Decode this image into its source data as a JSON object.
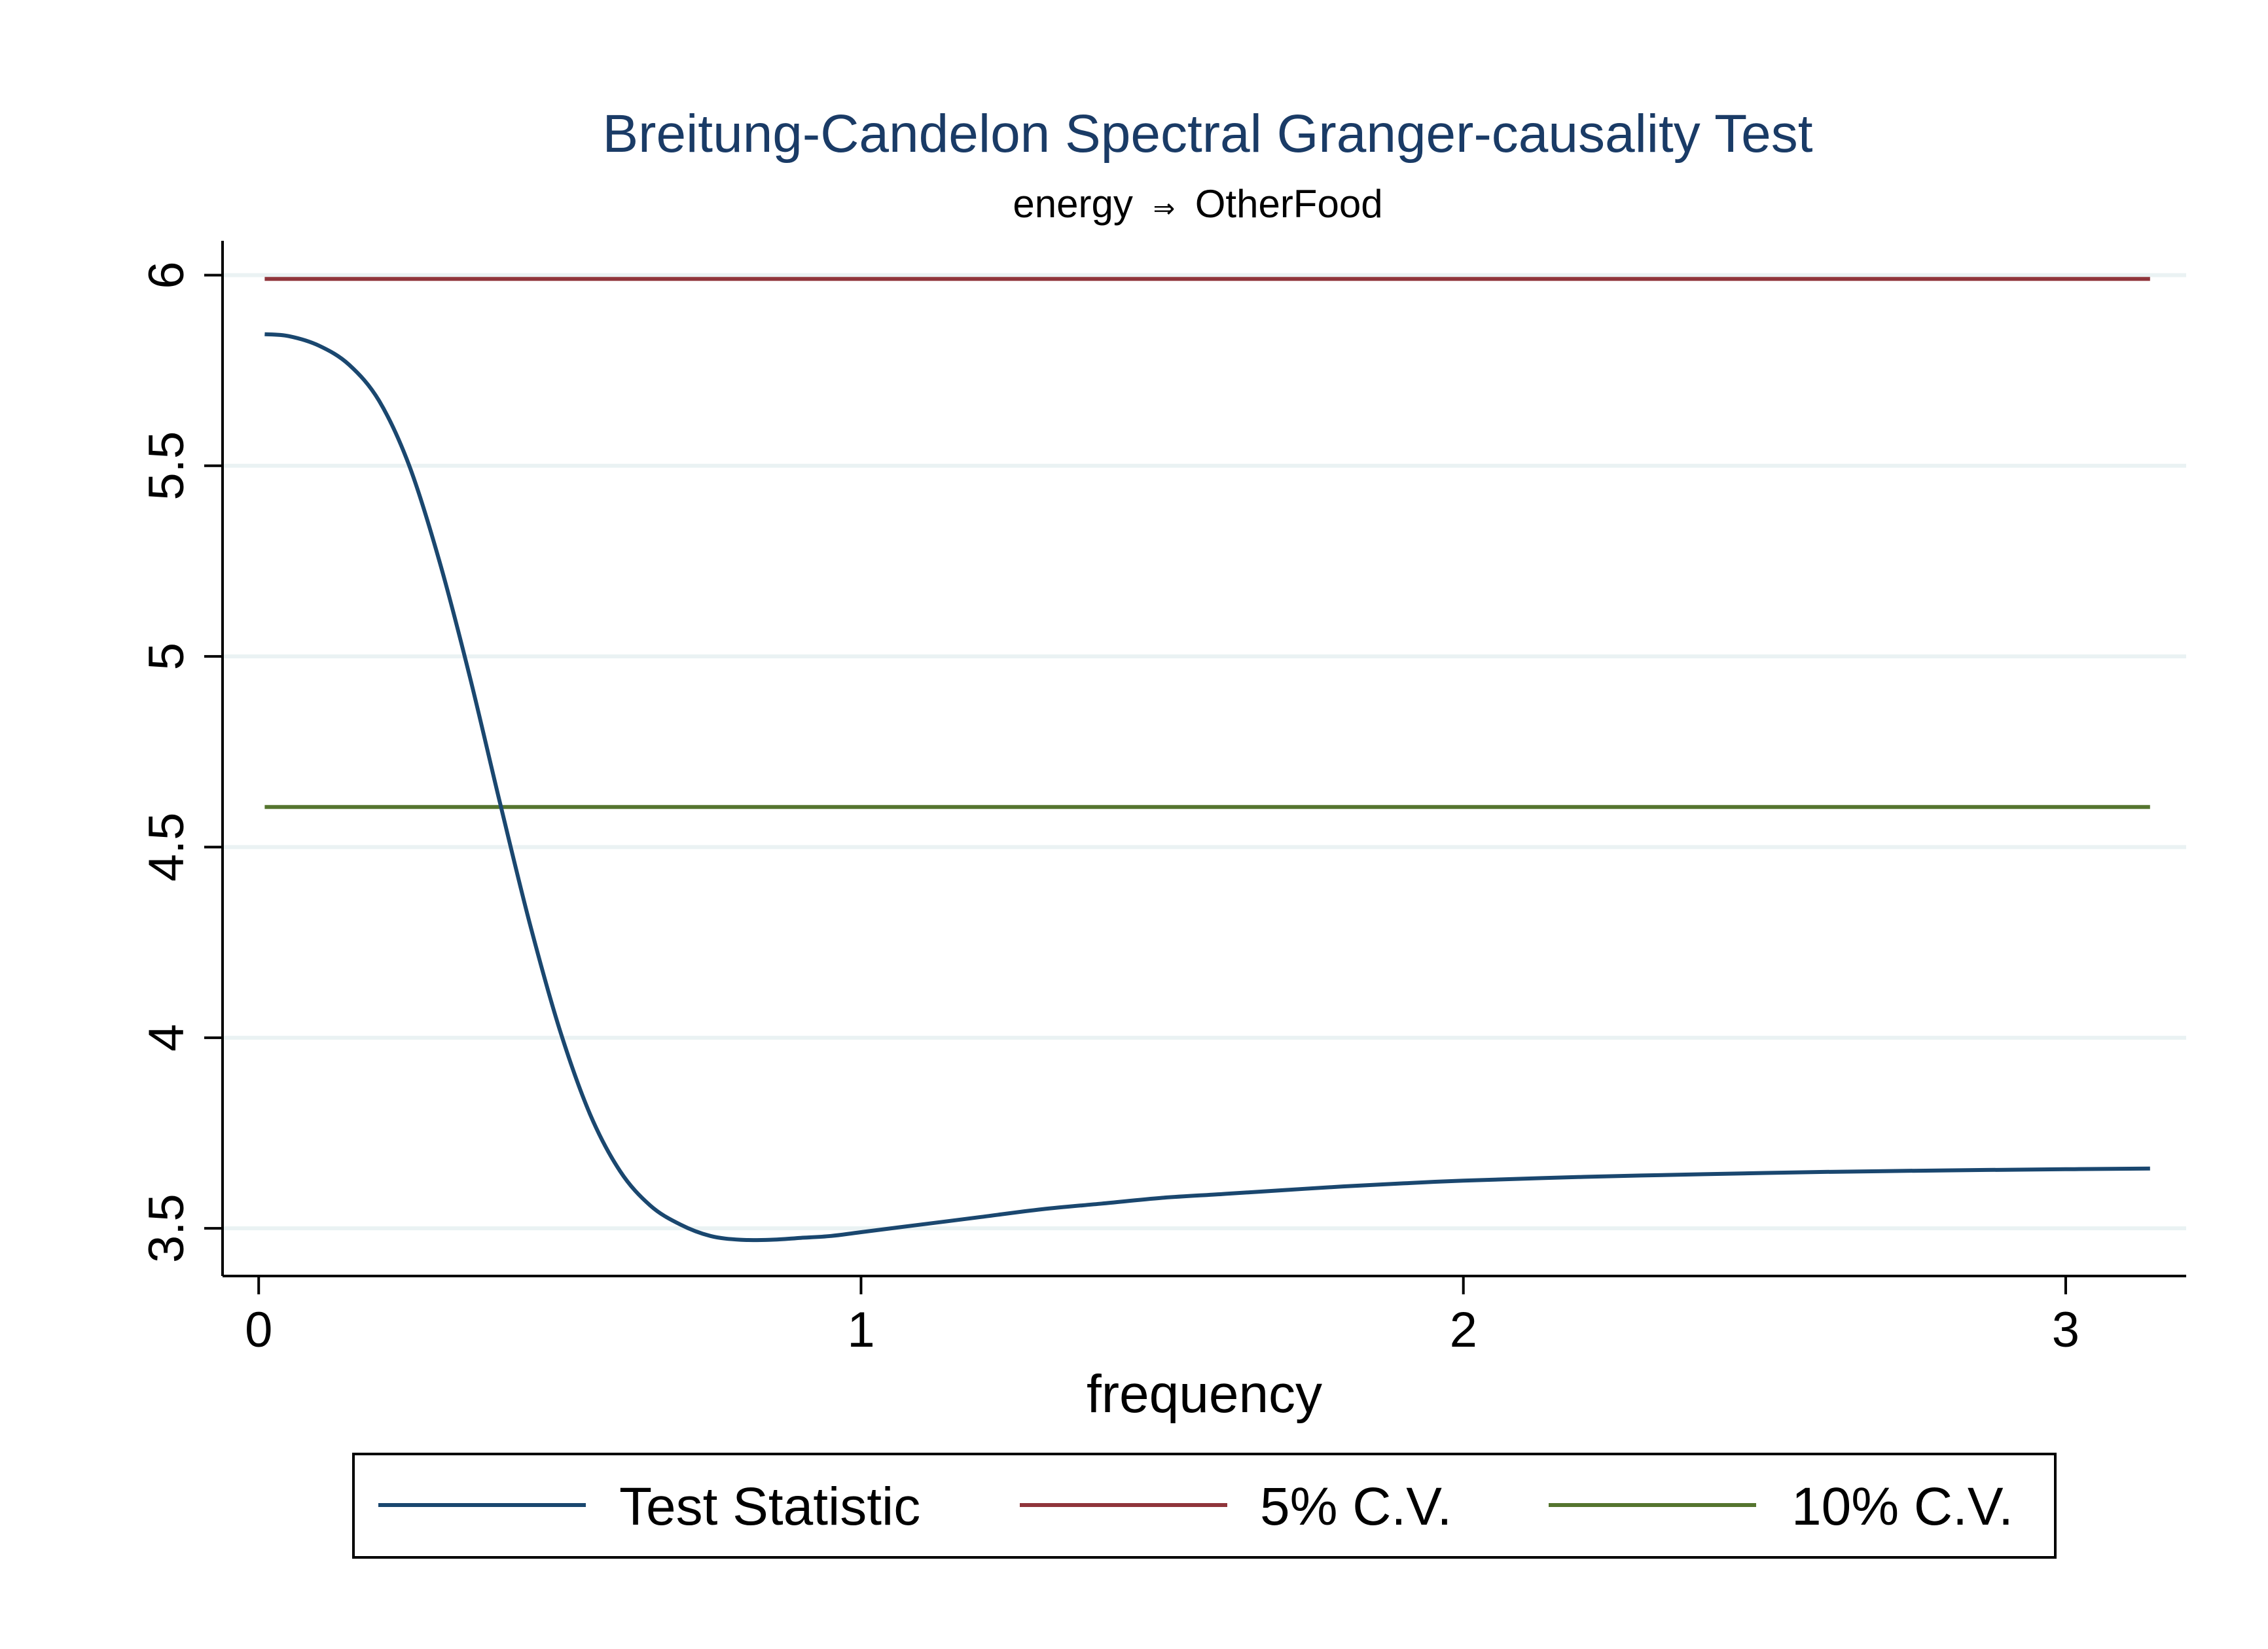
{
  "chart_data": {
    "type": "line",
    "title": "Breitung-Candelon Spectral Granger-causality Test",
    "subtitle": {
      "from": "energy",
      "arrow": "⇒",
      "to": "OtherFood"
    },
    "xlabel": "frequency",
    "ylabel": "",
    "xlim": [
      -0.06,
      3.2
    ],
    "ylim": [
      3.375,
      6.09
    ],
    "x_ticks": [
      0,
      1,
      2,
      3
    ],
    "x_tick_labels": [
      "0",
      "1",
      "2",
      "3"
    ],
    "y_ticks": [
      3.5,
      4,
      4.5,
      5,
      5.5,
      6
    ],
    "y_tick_labels": [
      "3.5",
      "4",
      "4.5",
      "5",
      "5.5",
      "6"
    ],
    "grid": "horizontal",
    "legend_position": "bottom",
    "series": [
      {
        "name": "Test Statistic",
        "color": "#1a476f",
        "x": [
          0.01,
          0.05,
          0.1,
          0.15,
          0.2,
          0.25,
          0.3,
          0.35,
          0.4,
          0.45,
          0.5,
          0.55,
          0.6,
          0.65,
          0.7,
          0.75,
          0.8,
          0.85,
          0.9,
          0.95,
          1.0,
          1.1,
          1.2,
          1.3,
          1.4,
          1.5,
          1.6,
          1.7,
          1.8,
          1.9,
          2.0,
          2.2,
          2.4,
          2.6,
          2.8,
          3.0,
          3.14
        ],
        "values": [
          5.845,
          5.84,
          5.815,
          5.765,
          5.67,
          5.5,
          5.25,
          4.95,
          4.62,
          4.3,
          4.02,
          3.8,
          3.65,
          3.56,
          3.51,
          3.48,
          3.47,
          3.47,
          3.475,
          3.48,
          3.49,
          3.51,
          3.53,
          3.55,
          3.565,
          3.58,
          3.59,
          3.6,
          3.61,
          3.618,
          3.625,
          3.635,
          3.642,
          3.648,
          3.652,
          3.655,
          3.657
        ]
      },
      {
        "name": "5% C.V.",
        "color": "#90353b",
        "x": [
          0.01,
          3.14
        ],
        "values": [
          5.99,
          5.99
        ]
      },
      {
        "name": "10% C.V.",
        "color": "#55752f",
        "x": [
          0.01,
          3.14
        ],
        "values": [
          4.605,
          4.605
        ]
      }
    ]
  },
  "colors": {
    "title": "#1a3b66",
    "grid": "#eaf2f3",
    "axis": "#000000",
    "background": "#ffffff"
  }
}
